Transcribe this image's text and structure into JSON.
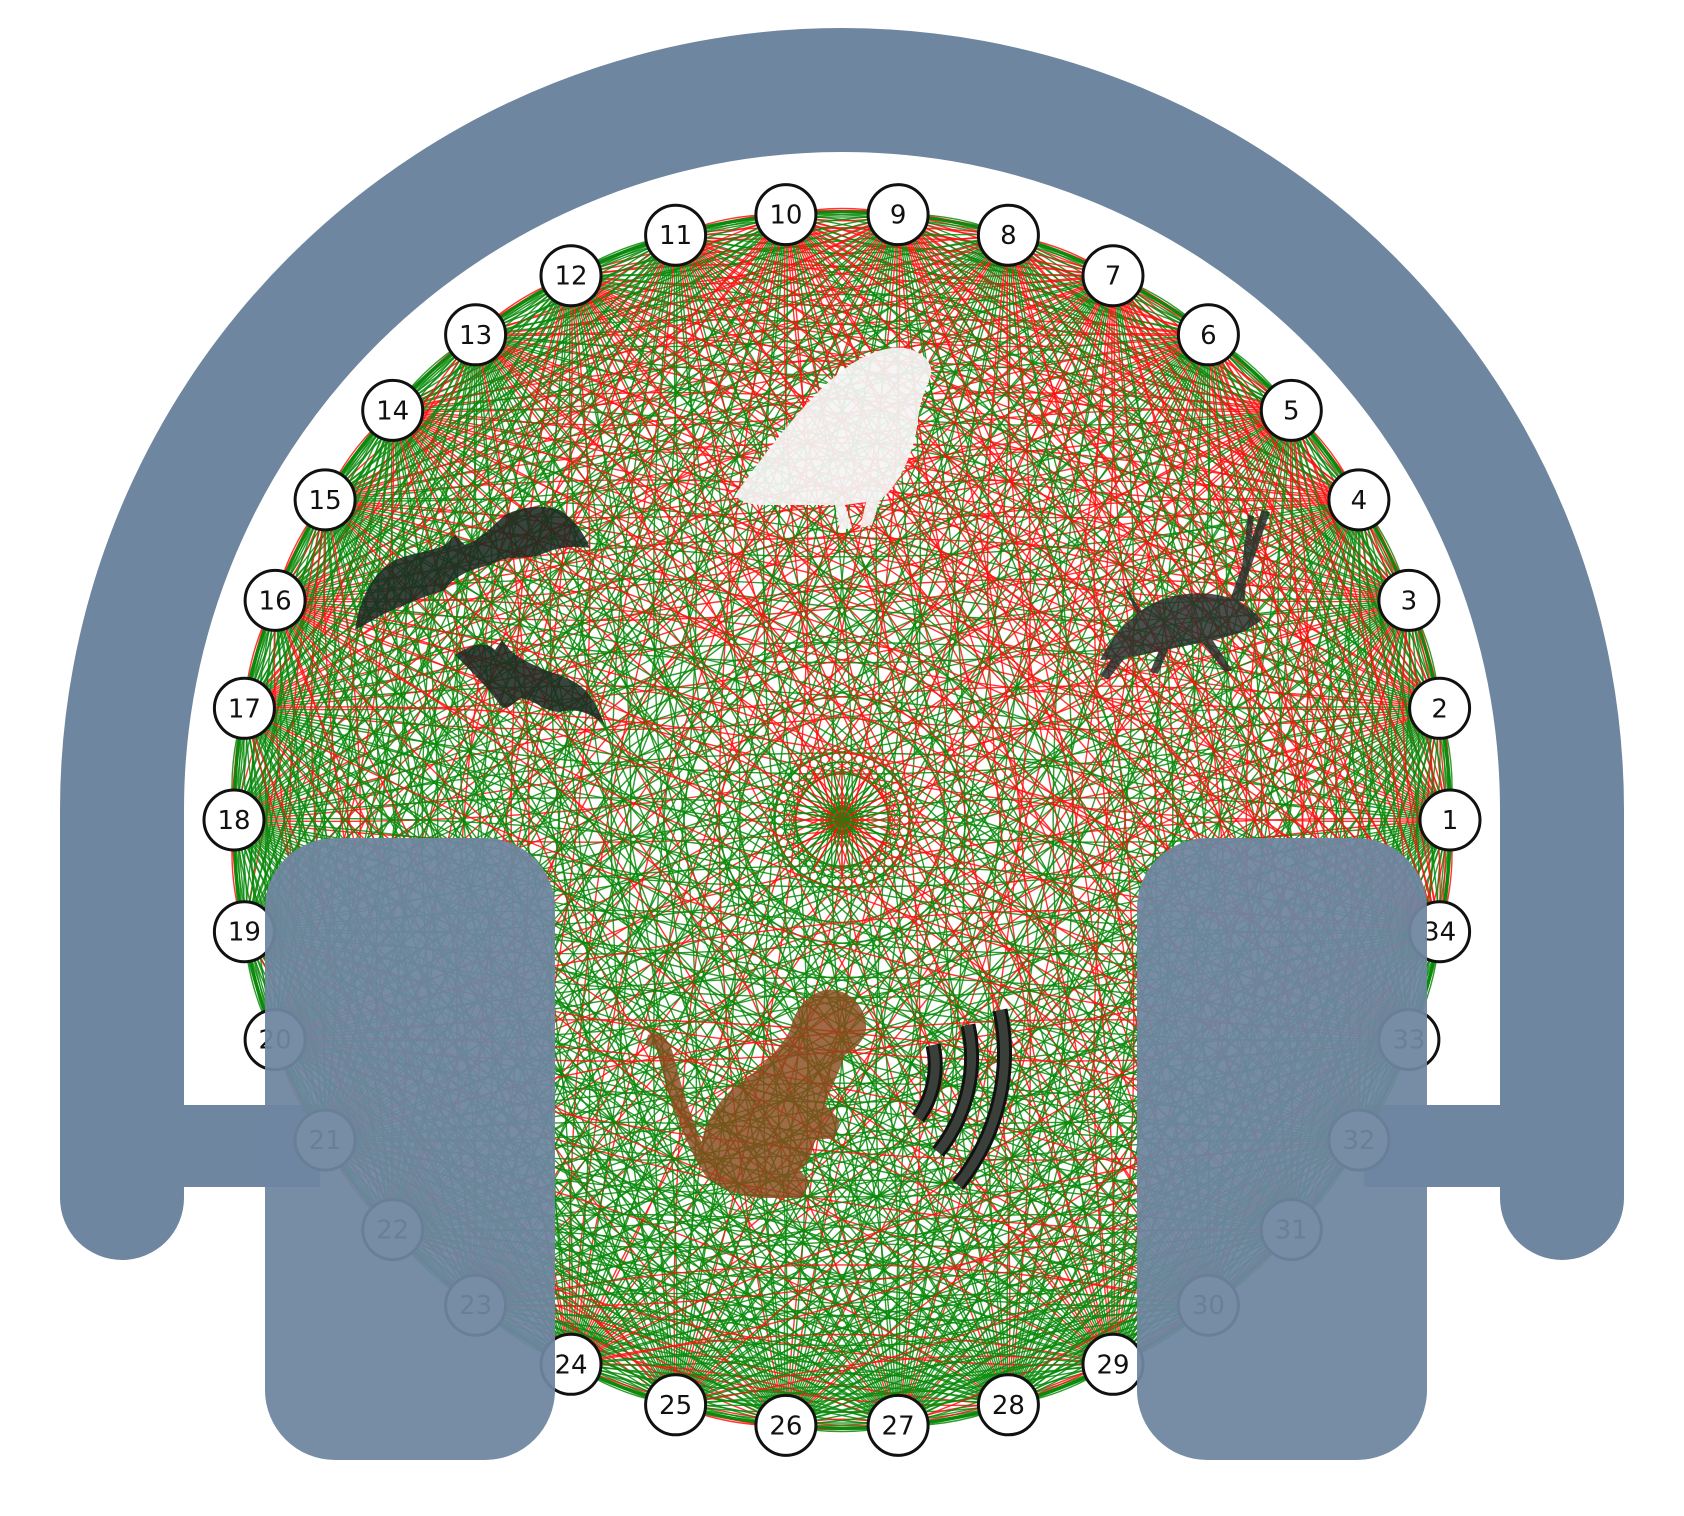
{
  "diagram": {
    "nodes": [
      "1",
      "2",
      "3",
      "4",
      "5",
      "6",
      "7",
      "8",
      "9",
      "10",
      "11",
      "12",
      "13",
      "14",
      "15",
      "16",
      "17",
      "18",
      "19",
      "20",
      "21",
      "22",
      "23",
      "24",
      "25",
      "26",
      "27",
      "28",
      "29",
      "30",
      "31",
      "32",
      "33",
      "34"
    ],
    "colors": {
      "headphones": "#6f86a0",
      "edge_green": "#0a8a0a",
      "edge_red": "#ff1010",
      "node_fill": "#ffffff",
      "node_stroke": "#111111",
      "bat": "#1e2a22",
      "bird": "#f4f4f4",
      "grasshopper": "#2b302d",
      "monkey": "#8a4a1e",
      "sound_waves": "#3a3f3a"
    },
    "icons": [
      "headphones-icon",
      "bird-icon",
      "bat-icon",
      "grasshopper-icon",
      "monkey-icon",
      "sound-waves-icon"
    ]
  }
}
